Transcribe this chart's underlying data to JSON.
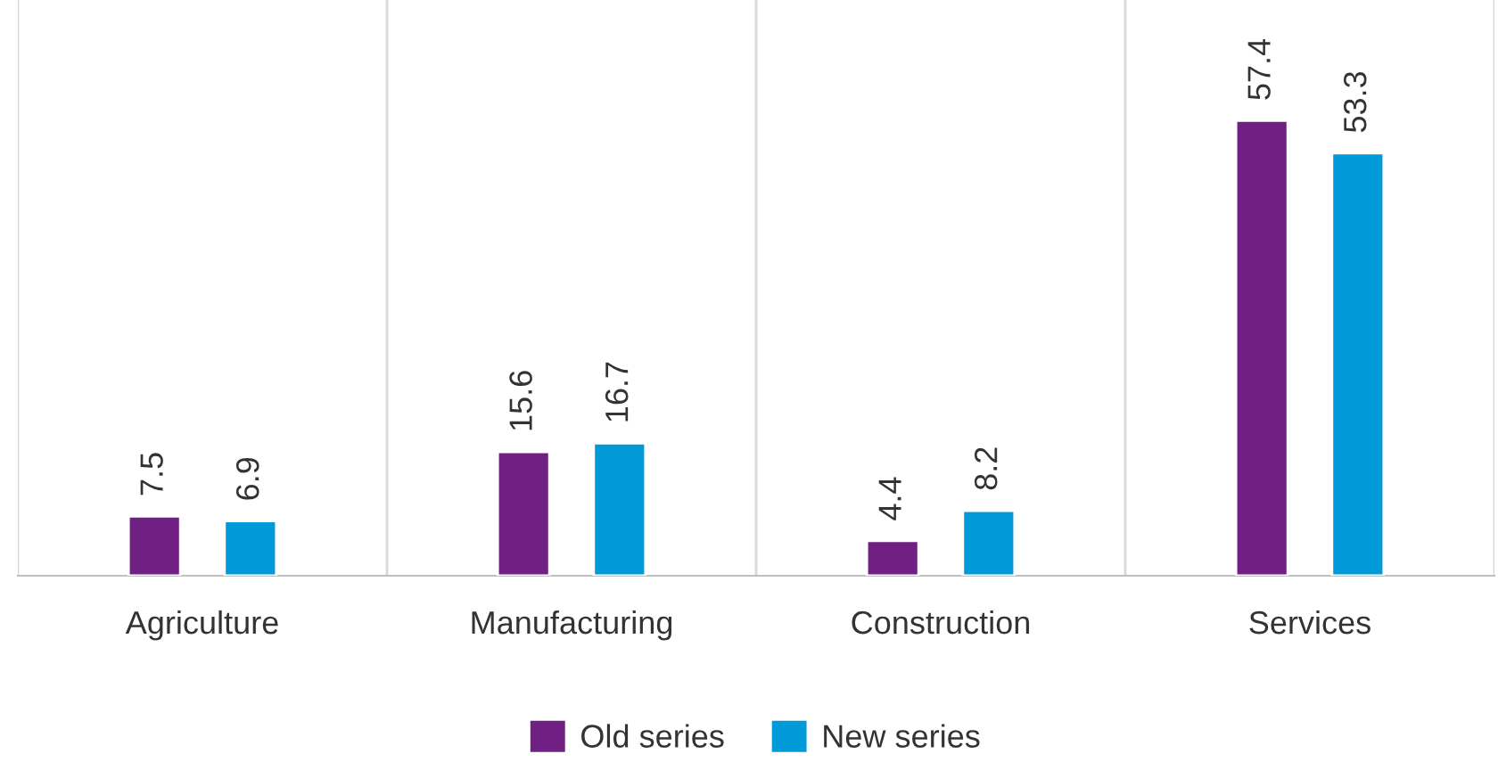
{
  "chart_data": {
    "type": "bar",
    "categories": [
      "Agriculture",
      "Manufacturing",
      "Construction",
      "Services"
    ],
    "series": [
      {
        "name": "Old series",
        "color": "#702082",
        "values": [
          7.5,
          15.6,
          4.4,
          57.4
        ]
      },
      {
        "name": "New series",
        "color": "#009ad9",
        "values": [
          6.9,
          16.7,
          8.2,
          53.3
        ]
      }
    ],
    "data_labels": true,
    "grid": "x",
    "legend": "bottom"
  }
}
